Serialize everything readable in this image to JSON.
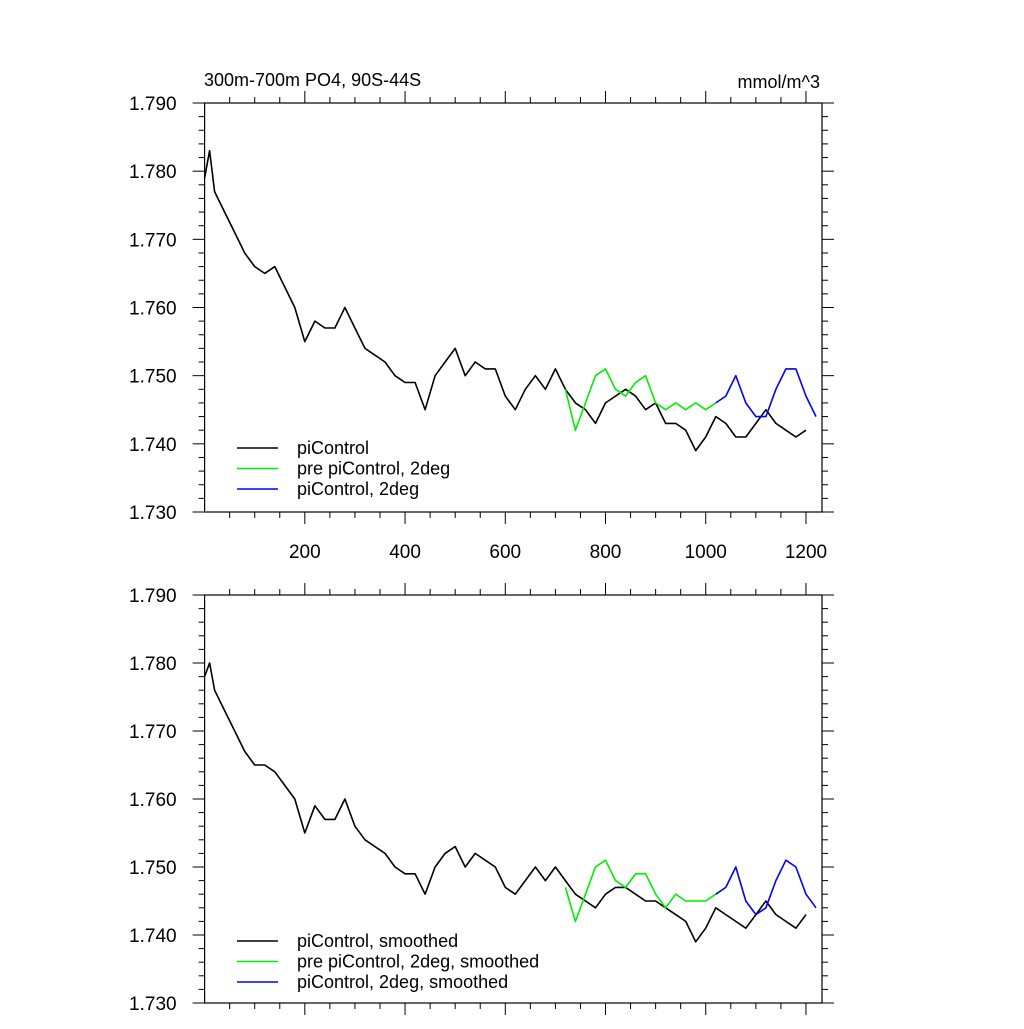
{
  "chart_data": [
    {
      "type": "line",
      "title": "300m-700m PO4, 90S-44S",
      "units": "mmol/m^3",
      "xlabel": "",
      "ylabel": "",
      "xlim": [
        0,
        1232
      ],
      "ylim": [
        1.73,
        1.79
      ],
      "xticks": [
        200,
        400,
        600,
        800,
        1000,
        1200
      ],
      "xtick_labels": [
        "200",
        "400",
        "600",
        "800",
        "1000",
        "1200"
      ],
      "yticks": [
        1.73,
        1.74,
        1.75,
        1.76,
        1.77,
        1.78,
        1.79
      ],
      "ytick_labels": [
        "1.730",
        "1.740",
        "1.750",
        "1.760",
        "1.770",
        "1.780",
        "1.790"
      ],
      "grid": false,
      "legend_position": "bottom-left",
      "series": [
        {
          "name": "piControl",
          "color": "#000000",
          "x": [
            0,
            10,
            20,
            40,
            60,
            80,
            100,
            120,
            140,
            160,
            180,
            200,
            220,
            240,
            260,
            280,
            300,
            320,
            340,
            360,
            380,
            400,
            420,
            440,
            460,
            480,
            500,
            520,
            540,
            560,
            580,
            600,
            620,
            640,
            660,
            680,
            700,
            720,
            740,
            760,
            780,
            800,
            820,
            840,
            860,
            880,
            900,
            920,
            940,
            960,
            980,
            1000,
            1020,
            1040,
            1060,
            1080,
            1100,
            1120,
            1140,
            1160,
            1180,
            1200
          ],
          "y": [
            1.779,
            1.783,
            1.777,
            1.774,
            1.771,
            1.768,
            1.766,
            1.765,
            1.766,
            1.763,
            1.76,
            1.755,
            1.758,
            1.757,
            1.757,
            1.76,
            1.757,
            1.754,
            1.753,
            1.752,
            1.75,
            1.749,
            1.749,
            1.745,
            1.75,
            1.752,
            1.754,
            1.75,
            1.752,
            1.751,
            1.751,
            1.747,
            1.745,
            1.748,
            1.75,
            1.748,
            1.751,
            1.748,
            1.746,
            1.745,
            1.743,
            1.746,
            1.747,
            1.748,
            1.747,
            1.745,
            1.746,
            1.743,
            1.743,
            1.742,
            1.739,
            1.741,
            1.744,
            1.743,
            1.741,
            1.741,
            1.743,
            1.745,
            1.743,
            1.742,
            1.741,
            1.742
          ]
        },
        {
          "name": "pre piControl, 2deg",
          "color": "#00ee00",
          "x": [
            720,
            740,
            760,
            780,
            800,
            820,
            840,
            860,
            880,
            900,
            920,
            940,
            960,
            980,
            1000,
            1020
          ],
          "y": [
            1.748,
            1.742,
            1.746,
            1.75,
            1.751,
            1.748,
            1.747,
            1.749,
            1.75,
            1.746,
            1.745,
            1.746,
            1.745,
            1.746,
            1.745,
            1.746
          ]
        },
        {
          "name": "piControl, 2deg",
          "color": "#0000ff",
          "x": [
            1020,
            1040,
            1060,
            1080,
            1100,
            1120,
            1140,
            1160,
            1180,
            1200,
            1220
          ],
          "y": [
            1.746,
            1.747,
            1.75,
            1.746,
            1.744,
            1.744,
            1.748,
            1.751,
            1.751,
            1.747,
            1.744
          ]
        }
      ]
    },
    {
      "type": "line",
      "title": "",
      "xlim": [
        0,
        1232
      ],
      "ylim": [
        1.73,
        1.79
      ],
      "xticks": [
        200,
        400,
        600,
        800,
        1000,
        1200
      ],
      "yticks": [
        1.73,
        1.74,
        1.75,
        1.76,
        1.77,
        1.78,
        1.79
      ],
      "ytick_labels": [
        "1.730",
        "1.740",
        "1.750",
        "1.760",
        "1.770",
        "1.780",
        "1.790"
      ],
      "grid": false,
      "legend_position": "bottom-left",
      "series": [
        {
          "name": "piControl, smoothed",
          "color": "#000000",
          "x": [
            0,
            10,
            20,
            40,
            60,
            80,
            100,
            120,
            140,
            160,
            180,
            200,
            220,
            240,
            260,
            280,
            300,
            320,
            340,
            360,
            380,
            400,
            420,
            440,
            460,
            480,
            500,
            520,
            540,
            560,
            580,
            600,
            620,
            640,
            660,
            680,
            700,
            720,
            740,
            760,
            780,
            800,
            820,
            840,
            860,
            880,
            900,
            920,
            940,
            960,
            980,
            1000,
            1020,
            1040,
            1060,
            1080,
            1100,
            1120,
            1140,
            1160,
            1180,
            1200
          ],
          "y": [
            1.778,
            1.78,
            1.776,
            1.773,
            1.77,
            1.767,
            1.765,
            1.765,
            1.764,
            1.762,
            1.76,
            1.755,
            1.759,
            1.757,
            1.757,
            1.76,
            1.756,
            1.754,
            1.753,
            1.752,
            1.75,
            1.749,
            1.749,
            1.746,
            1.75,
            1.752,
            1.753,
            1.75,
            1.752,
            1.751,
            1.75,
            1.747,
            1.746,
            1.748,
            1.75,
            1.748,
            1.75,
            1.748,
            1.746,
            1.745,
            1.744,
            1.746,
            1.747,
            1.747,
            1.746,
            1.745,
            1.745,
            1.744,
            1.743,
            1.742,
            1.739,
            1.741,
            1.744,
            1.743,
            1.742,
            1.741,
            1.743,
            1.745,
            1.743,
            1.742,
            1.741,
            1.743
          ]
        },
        {
          "name": "pre piControl, 2deg, smoothed",
          "color": "#00ee00",
          "x": [
            720,
            740,
            760,
            780,
            800,
            820,
            840,
            860,
            880,
            900,
            920,
            940,
            960,
            980,
            1000,
            1020
          ],
          "y": [
            1.747,
            1.742,
            1.746,
            1.75,
            1.751,
            1.748,
            1.747,
            1.749,
            1.749,
            1.746,
            1.744,
            1.746,
            1.745,
            1.745,
            1.745,
            1.746
          ]
        },
        {
          "name": "piControl, 2deg, smoothed",
          "color": "#0000ff",
          "x": [
            1020,
            1040,
            1060,
            1080,
            1100,
            1120,
            1140,
            1160,
            1180,
            1200,
            1220
          ],
          "y": [
            1.746,
            1.747,
            1.75,
            1.745,
            1.743,
            1.744,
            1.748,
            1.751,
            1.75,
            1.746,
            1.744
          ]
        }
      ]
    }
  ]
}
